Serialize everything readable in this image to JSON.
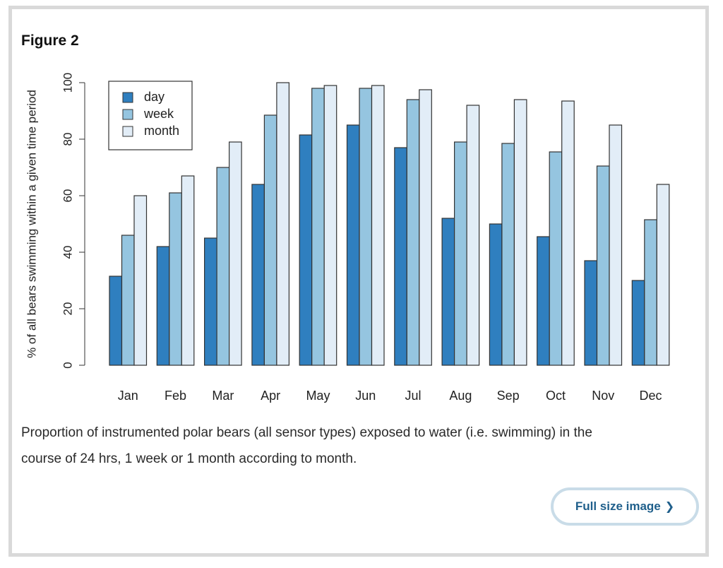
{
  "figure": {
    "title": "Figure 2",
    "caption_line1": "Proportion of instrumented polar bears (all sensor types) exposed to water (i.e. swimming) in the",
    "caption_line2": "course of 24 hrs, 1 week or 1 month according to month.",
    "button_label": "Full size image",
    "button_icon": "chevron-right-icon"
  },
  "chart_data": {
    "type": "bar",
    "title": "",
    "xlabel": "",
    "ylabel": "% of all bears swimming within a given time period",
    "categories": [
      "Jan",
      "Feb",
      "Mar",
      "Apr",
      "May",
      "Jun",
      "Jul",
      "Aug",
      "Sep",
      "Oct",
      "Nov",
      "Dec"
    ],
    "ylim": [
      0,
      100
    ],
    "yticks": [
      0,
      20,
      40,
      60,
      80,
      100
    ],
    "grid": false,
    "legend": "top-left",
    "series": [
      {
        "name": "day",
        "color": "#2f7fbf",
        "values": [
          31.5,
          42,
          45,
          64,
          81.5,
          85,
          77,
          52,
          50,
          45.5,
          37,
          30
        ]
      },
      {
        "name": "week",
        "color": "#95c5e0",
        "values": [
          46,
          61,
          70,
          88.5,
          98,
          98,
          94,
          79,
          78.5,
          75.5,
          70.5,
          51.5
        ]
      },
      {
        "name": "month",
        "color": "#e2edf7",
        "values": [
          60,
          67,
          79,
          100,
          99,
          99,
          97.5,
          92,
          94,
          93.5,
          85,
          64
        ]
      }
    ]
  }
}
